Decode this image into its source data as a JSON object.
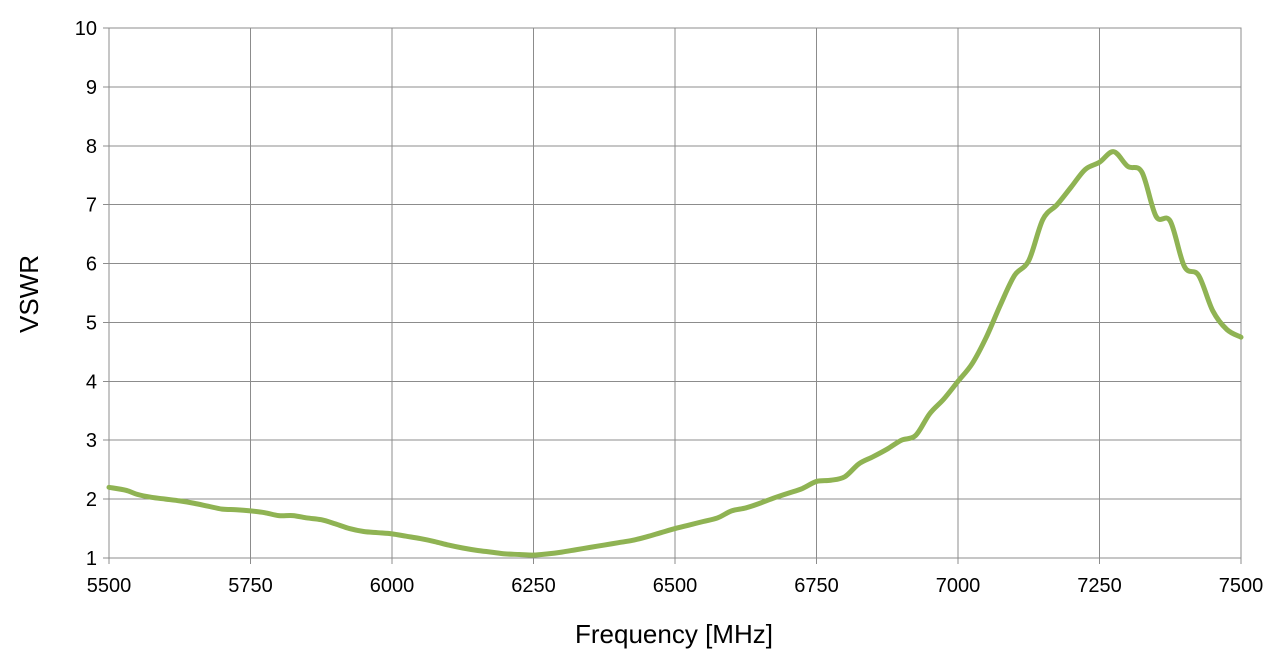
{
  "chart_data": {
    "type": "line",
    "title": "",
    "xlabel": "Frequency [MHz]",
    "ylabel": "VSWR",
    "xlim": [
      5500,
      7500
    ],
    "ylim": [
      1,
      10
    ],
    "xticks": [
      5500,
      5750,
      6000,
      6250,
      6500,
      6750,
      7000,
      7250,
      7500
    ],
    "yticks": [
      1,
      2,
      3,
      4,
      5,
      6,
      7,
      8,
      9,
      10
    ],
    "grid": true,
    "legend": "none",
    "series": [
      {
        "color": "#8fb353",
        "x": [
          5500,
          5530,
          5550,
          5575,
          5600,
          5625,
          5650,
          5675,
          5700,
          5725,
          5750,
          5775,
          5800,
          5825,
          5850,
          5875,
          5900,
          5925,
          5950,
          5975,
          6000,
          6025,
          6050,
          6075,
          6100,
          6125,
          6150,
          6175,
          6200,
          6225,
          6250,
          6275,
          6300,
          6325,
          6350,
          6375,
          6400,
          6425,
          6450,
          6475,
          6500,
          6525,
          6550,
          6575,
          6600,
          6625,
          6650,
          6675,
          6700,
          6725,
          6750,
          6775,
          6800,
          6825,
          6850,
          6875,
          6900,
          6925,
          6950,
          6975,
          7000,
          7025,
          7050,
          7075,
          7100,
          7125,
          7150,
          7175,
          7200,
          7225,
          7250,
          7275,
          7300,
          7325,
          7350,
          7375,
          7400,
          7425,
          7450,
          7475,
          7500
        ],
        "y": [
          2.2,
          2.15,
          2.08,
          2.03,
          2.0,
          1.97,
          1.93,
          1.88,
          1.83,
          1.82,
          1.8,
          1.77,
          1.72,
          1.72,
          1.68,
          1.65,
          1.58,
          1.5,
          1.45,
          1.43,
          1.41,
          1.37,
          1.33,
          1.28,
          1.22,
          1.17,
          1.13,
          1.1,
          1.07,
          1.06,
          1.05,
          1.07,
          1.1,
          1.14,
          1.18,
          1.22,
          1.26,
          1.3,
          1.36,
          1.43,
          1.5,
          1.56,
          1.62,
          1.68,
          1.8,
          1.85,
          1.93,
          2.02,
          2.1,
          2.18,
          2.3,
          2.32,
          2.38,
          2.6,
          2.72,
          2.85,
          3.0,
          3.08,
          3.45,
          3.7,
          4.0,
          4.3,
          4.75,
          5.3,
          5.8,
          6.05,
          6.75,
          7.0,
          7.3,
          7.6,
          7.72,
          7.9,
          7.65,
          7.55,
          6.8,
          6.72,
          5.95,
          5.8,
          5.2,
          4.88,
          4.75
        ]
      }
    ]
  }
}
